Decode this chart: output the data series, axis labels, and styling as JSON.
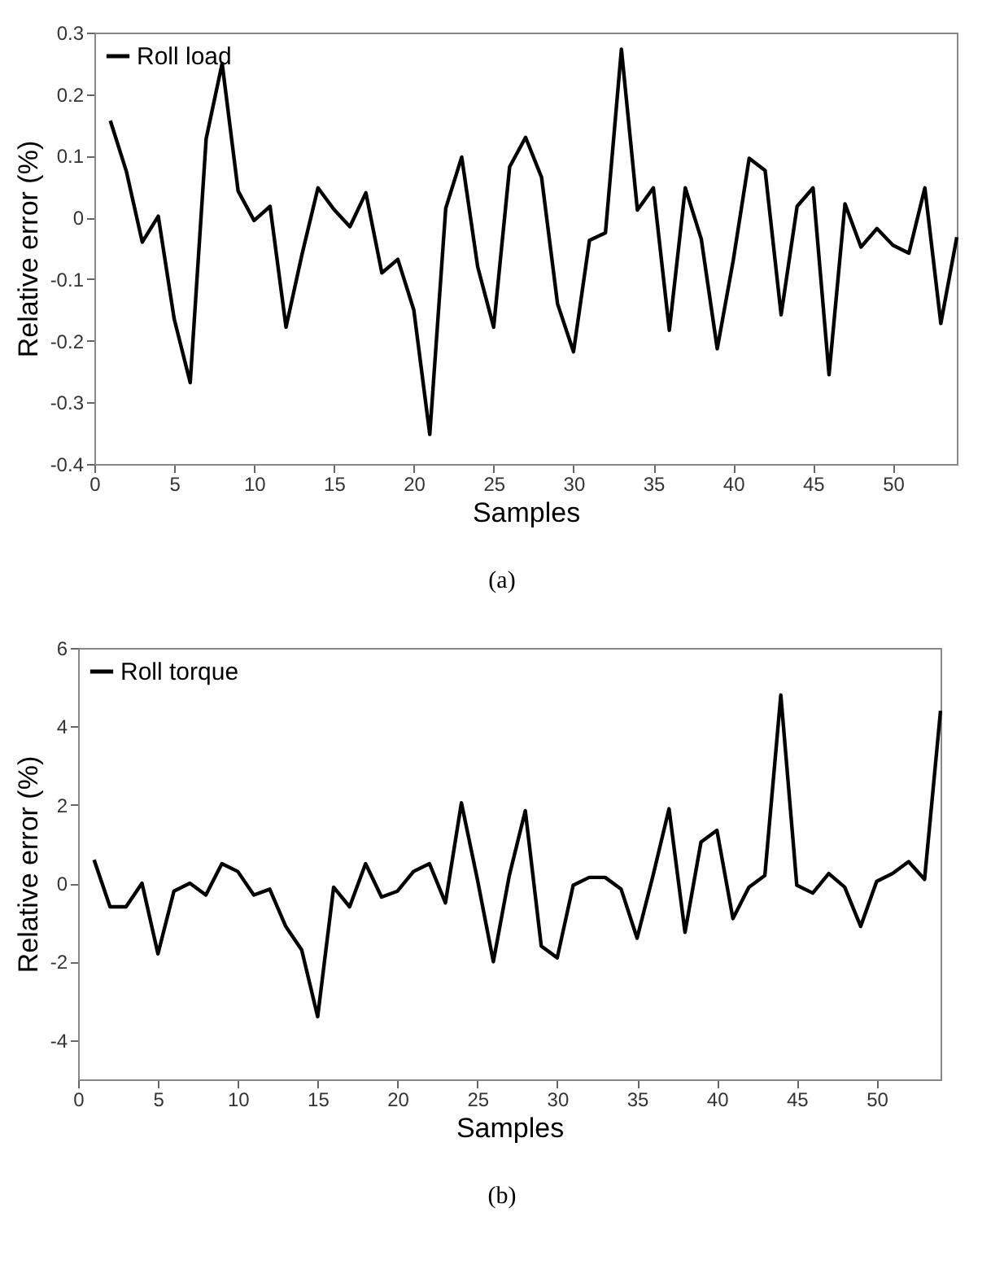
{
  "chart_data": [
    {
      "type": "line",
      "xlabel": "Samples",
      "ylabel": "Relative error (%)",
      "annotations": [
        "(a)"
      ],
      "legend": "top left",
      "grid": false,
      "marker": "none",
      "line_style": "solid",
      "xlim": [
        0,
        54
      ],
      "xticks": [
        0,
        5,
        10,
        15,
        20,
        25,
        30,
        35,
        40,
        45,
        50
      ],
      "ylim": [
        -0.4,
        0.3
      ],
      "yticks": [
        -0.4,
        -0.3,
        -0.2,
        -0.1,
        0,
        0.1,
        0.2,
        0.3
      ],
      "x": [
        1,
        2,
        3,
        4,
        5,
        6,
        7,
        8,
        9,
        10,
        11,
        12,
        13,
        14,
        15,
        16,
        17,
        18,
        19,
        20,
        21,
        22,
        23,
        24,
        25,
        26,
        27,
        28,
        29,
        30,
        31,
        32,
        33,
        34,
        35,
        36,
        37,
        38,
        39,
        40,
        41,
        42,
        43,
        44,
        45,
        46,
        47,
        48,
        49,
        50,
        51,
        52,
        53,
        54
      ],
      "series": [
        {
          "name": "Roll load",
          "color": "#000000",
          "values": [
            0.157,
            0.075,
            -0.04,
            0.002,
            -0.165,
            -0.268,
            0.128,
            0.25,
            0.043,
            -0.005,
            0.018,
            -0.178,
            -0.06,
            0.048,
            0.013,
            -0.015,
            0.04,
            -0.09,
            -0.068,
            -0.15,
            -0.352,
            0.015,
            0.098,
            -0.08,
            -0.178,
            0.082,
            0.13,
            0.065,
            -0.14,
            -0.218,
            -0.037,
            -0.025,
            0.273,
            0.012,
            0.048,
            -0.183,
            0.048,
            -0.035,
            -0.213,
            -0.07,
            0.096,
            0.076,
            -0.158,
            0.018,
            0.048,
            -0.255,
            0.022,
            -0.048,
            -0.018,
            -0.045,
            -0.058,
            0.048,
            -0.172,
            -0.032
          ]
        }
      ]
    },
    {
      "type": "line",
      "xlabel": "Samples",
      "ylabel": "Relative error (%)",
      "annotations": [
        "(b)"
      ],
      "legend": "top left",
      "grid": false,
      "marker": "none",
      "line_style": "solid",
      "xlim": [
        0,
        54
      ],
      "xticks": [
        0,
        5,
        10,
        15,
        20,
        25,
        30,
        35,
        40,
        45,
        50
      ],
      "ylim": [
        -5,
        6
      ],
      "yticks": [
        -4,
        -2,
        0,
        2,
        4,
        6
      ],
      "x": [
        1,
        2,
        3,
        4,
        5,
        6,
        7,
        8,
        9,
        10,
        11,
        12,
        13,
        14,
        15,
        16,
        17,
        18,
        19,
        20,
        21,
        22,
        23,
        24,
        25,
        26,
        27,
        28,
        29,
        30,
        31,
        32,
        33,
        34,
        35,
        36,
        37,
        38,
        39,
        40,
        41,
        42,
        43,
        44,
        45,
        46,
        47,
        48,
        49,
        50,
        51,
        52,
        53,
        54
      ],
      "series": [
        {
          "name": "Roll torque",
          "color": "#000000",
          "values": [
            0.6,
            -0.6,
            -0.6,
            0,
            -1.8,
            -0.2,
            0,
            -0.3,
            0.5,
            0.3,
            -0.3,
            -0.15,
            -1.1,
            -1.7,
            -3.4,
            -0.1,
            -0.6,
            0.5,
            -0.35,
            -0.2,
            0.3,
            0.5,
            -0.5,
            2.05,
            0.1,
            -2.0,
            0.2,
            1.85,
            -1.6,
            -1.9,
            -0.05,
            0.15,
            0.15,
            -0.15,
            -1.4,
            0.2,
            1.9,
            -1.25,
            1.05,
            1.35,
            -0.9,
            -0.1,
            0.2,
            4.8,
            -0.05,
            -0.25,
            0.25,
            -0.1,
            -1.1,
            0.05,
            0.25,
            0.55,
            0.1,
            4.4
          ]
        }
      ]
    }
  ]
}
